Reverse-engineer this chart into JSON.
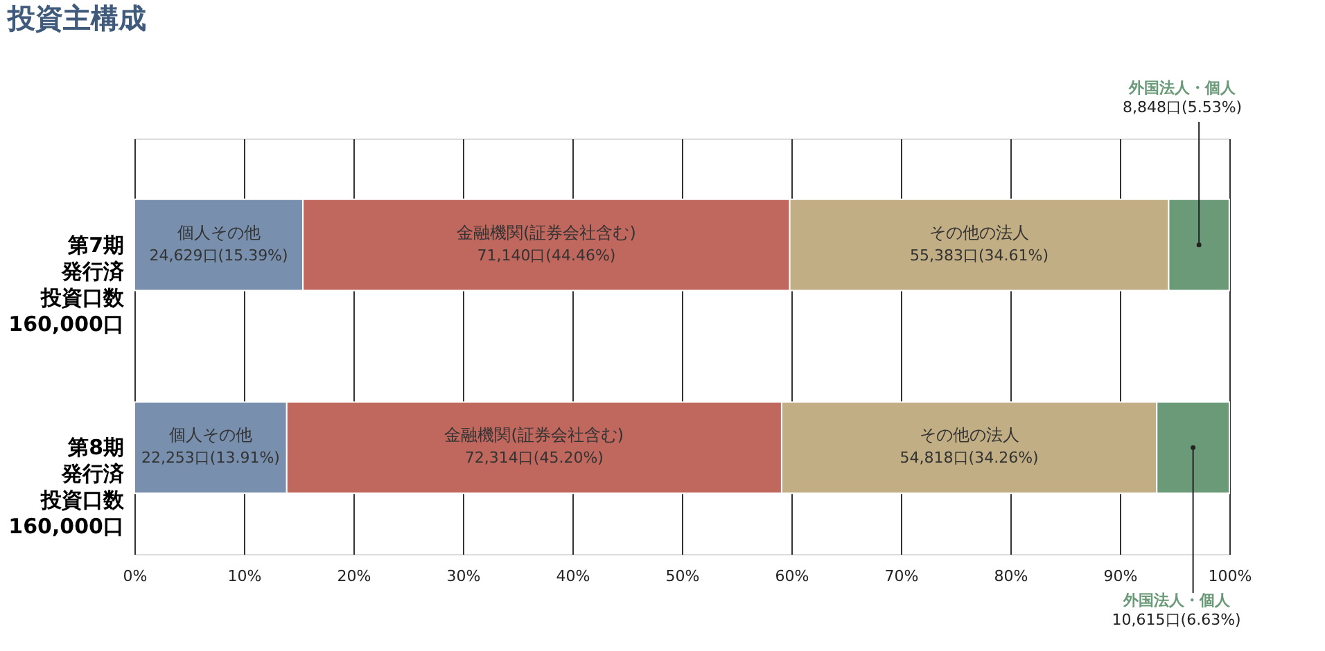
{
  "chart_data": {
    "type": "bar",
    "orientation": "horizontal",
    "stacked": true,
    "title": "投資主構成",
    "categories": [
      "第7期発行済投資口数160,000口",
      "第8期発行済投資口数160,000口"
    ],
    "series": [
      {
        "name": "個人その他",
        "color": "#7890ad",
        "values": [
          15.39,
          13.91
        ],
        "value_labels": [
          "24,629口(15.39%)",
          "22,253口(13.91%)"
        ]
      },
      {
        "name": "金融機関(証券会社含む)",
        "color": "#c0675e",
        "values": [
          44.46,
          45.2
        ],
        "value_labels": [
          "71,140口(44.46%)",
          "72,314口(45.20%)"
        ]
      },
      {
        "name": "その他の法人",
        "color": "#c2ae84",
        "values": [
          34.61,
          34.26
        ],
        "value_labels": [
          "55,383口(34.61%)",
          "54,818口(34.26%)"
        ]
      },
      {
        "name": "外国法人・個人",
        "color": "#6a9a78",
        "values": [
          5.53,
          6.63
        ],
        "value_labels": [
          "8,848口(5.53%)",
          "10,615口(6.63%)"
        ]
      }
    ],
    "xlim": [
      0,
      100
    ],
    "xticks": [
      {
        "value": 0,
        "label": "0%"
      },
      {
        "value": 10,
        "label": "10%"
      },
      {
        "value": 20,
        "label": "20%"
      },
      {
        "value": 30,
        "label": "30%"
      },
      {
        "value": 40,
        "label": "40%"
      },
      {
        "value": 50,
        "label": "50%"
      },
      {
        "value": 60,
        "label": "60%"
      },
      {
        "value": 70,
        "label": "70%"
      },
      {
        "value": 80,
        "label": "80%"
      },
      {
        "value": 90,
        "label": "90%"
      },
      {
        "value": 100,
        "label": "100%"
      }
    ],
    "grid": "x",
    "legend": false
  }
}
